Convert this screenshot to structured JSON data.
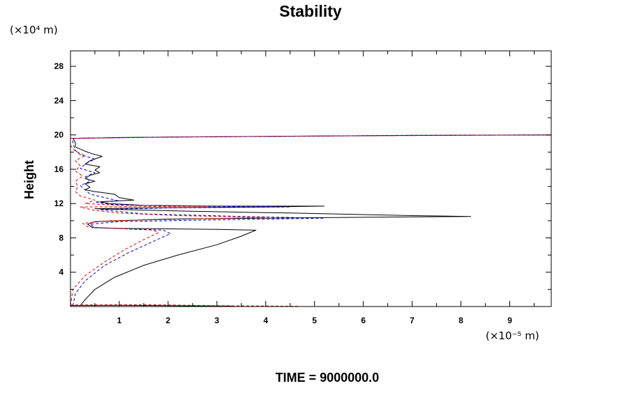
{
  "chart_data": {
    "type": "line",
    "title": "Stability",
    "ylabel": "Height",
    "y_unit": "(×10⁴ m)",
    "x_unit": "(×10⁻⁵ m)",
    "footer": "TIME = 9000000.0",
    "xlim": [
      0,
      9.85
    ],
    "ylim": [
      0,
      29.8
    ],
    "x_ticks": [
      1,
      2,
      3,
      4,
      5,
      6,
      7,
      8,
      9
    ],
    "y_ticks": [
      4,
      8,
      12,
      16,
      20,
      24,
      28
    ],
    "series": [
      {
        "color": "#000000",
        "dash": "solid",
        "points": [
          [
            0.2,
            0.1
          ],
          [
            0.3,
            0.8
          ],
          [
            0.5,
            2.0
          ],
          [
            0.9,
            3.4
          ],
          [
            1.5,
            4.8
          ],
          [
            2.2,
            6.0
          ],
          [
            3.0,
            7.2
          ],
          [
            3.5,
            8.2
          ],
          [
            3.8,
            8.9
          ],
          [
            3.0,
            9.0
          ],
          [
            1.0,
            9.1
          ],
          [
            0.45,
            9.2
          ],
          [
            0.35,
            9.6
          ],
          [
            0.5,
            9.9
          ],
          [
            2.0,
            10.2
          ],
          [
            6.0,
            10.4
          ],
          [
            8.2,
            10.5
          ],
          [
            7.0,
            10.6
          ],
          [
            4.5,
            10.9
          ],
          [
            2.5,
            11.1
          ],
          [
            1.0,
            11.3
          ],
          [
            0.5,
            11.4
          ],
          [
            1.5,
            11.5
          ],
          [
            4.0,
            11.6
          ],
          [
            5.2,
            11.7
          ],
          [
            3.0,
            11.7
          ],
          [
            1.5,
            11.8
          ],
          [
            0.8,
            12.0
          ],
          [
            0.6,
            12.2
          ],
          [
            0.9,
            12.3
          ],
          [
            1.3,
            12.4
          ],
          [
            1.0,
            12.7
          ],
          [
            0.9,
            13.1
          ],
          [
            0.5,
            13.4
          ],
          [
            0.3,
            13.6
          ],
          [
            0.4,
            13.9
          ],
          [
            0.3,
            14.3
          ],
          [
            0.5,
            14.6
          ],
          [
            0.3,
            14.9
          ],
          [
            0.4,
            15.3
          ],
          [
            0.6,
            15.6
          ],
          [
            0.5,
            15.9
          ],
          [
            0.6,
            16.3
          ],
          [
            0.3,
            16.6
          ],
          [
            0.4,
            17.0
          ],
          [
            0.65,
            17.5
          ],
          [
            0.45,
            17.8
          ],
          [
            0.3,
            18.1
          ],
          [
            0.1,
            18.6
          ],
          [
            0.1,
            19.1
          ],
          [
            0.05,
            19.6
          ],
          [
            1.0,
            19.7
          ],
          [
            3.0,
            19.8
          ],
          [
            7.0,
            19.95
          ],
          [
            9.85,
            20.0
          ]
        ]
      },
      {
        "color": "#0000cc",
        "dash": "dashed",
        "points": [
          [
            0.05,
            0.1
          ],
          [
            0.1,
            1.5
          ],
          [
            0.3,
            3.0
          ],
          [
            0.7,
            4.8
          ],
          [
            1.2,
            6.3
          ],
          [
            1.7,
            7.6
          ],
          [
            2.05,
            8.5
          ],
          [
            1.9,
            8.9
          ],
          [
            1.0,
            9.1
          ],
          [
            0.5,
            9.2
          ],
          [
            0.4,
            9.6
          ],
          [
            1.0,
            9.9
          ],
          [
            3.0,
            10.1
          ],
          [
            5.2,
            10.3
          ],
          [
            3.5,
            10.5
          ],
          [
            1.5,
            10.8
          ],
          [
            0.6,
            11.3
          ],
          [
            2.0,
            11.5
          ],
          [
            4.5,
            11.6
          ],
          [
            2.0,
            11.7
          ],
          [
            0.8,
            11.9
          ],
          [
            0.5,
            12.2
          ],
          [
            1.0,
            12.3
          ],
          [
            0.7,
            12.7
          ],
          [
            0.4,
            13.1
          ],
          [
            0.3,
            13.6
          ],
          [
            0.2,
            14.1
          ],
          [
            0.4,
            14.6
          ],
          [
            0.3,
            15.1
          ],
          [
            0.5,
            15.6
          ],
          [
            0.2,
            16.1
          ],
          [
            0.3,
            16.6
          ],
          [
            0.5,
            17.2
          ],
          [
            0.2,
            17.7
          ],
          [
            0.1,
            18.2
          ],
          [
            0.05,
            19.0
          ],
          [
            0.05,
            19.6
          ],
          [
            2.0,
            19.75
          ],
          [
            6.0,
            19.9
          ],
          [
            9.85,
            20.0
          ]
        ]
      },
      {
        "color": "#dd0000",
        "dash": "dashed",
        "points": [
          [
            0.0,
            0.1
          ],
          [
            0.05,
            2.0
          ],
          [
            0.3,
            3.6
          ],
          [
            0.7,
            5.2
          ],
          [
            1.1,
            6.6
          ],
          [
            1.5,
            7.8
          ],
          [
            1.8,
            8.6
          ],
          [
            1.7,
            8.9
          ],
          [
            0.9,
            9.1
          ],
          [
            0.35,
            9.3
          ],
          [
            0.25,
            9.7
          ],
          [
            0.8,
            10.0
          ],
          [
            2.5,
            10.2
          ],
          [
            4.0,
            10.4
          ],
          [
            2.2,
            10.6
          ],
          [
            1.0,
            10.9
          ],
          [
            0.5,
            11.2
          ],
          [
            0.2,
            11.6
          ],
          [
            1.5,
            11.65
          ],
          [
            2.8,
            11.7
          ],
          [
            1.0,
            11.8
          ],
          [
            0.3,
            12.0
          ],
          [
            0.5,
            12.4
          ],
          [
            0.2,
            12.9
          ],
          [
            0.1,
            13.4
          ],
          [
            0.15,
            14.0
          ],
          [
            0.1,
            14.6
          ],
          [
            0.25,
            15.2
          ],
          [
            0.1,
            15.8
          ],
          [
            0.2,
            16.4
          ],
          [
            0.1,
            17.0
          ],
          [
            0.3,
            17.6
          ],
          [
            0.1,
            18.1
          ],
          [
            0.0,
            18.8
          ],
          [
            0.0,
            19.6
          ],
          [
            2.0,
            19.75
          ],
          [
            6.0,
            19.9
          ],
          [
            9.85,
            20.0
          ]
        ]
      },
      {
        "color": "#000000",
        "dash": "solid",
        "points": [
          [
            0.0,
            0.12
          ],
          [
            1.0,
            0.15
          ],
          [
            2.0,
            0.1
          ],
          [
            3.3,
            0.05
          ]
        ]
      },
      {
        "color": "#dd0000",
        "dash": "dashed",
        "points": [
          [
            0.0,
            0.18
          ],
          [
            1.5,
            0.22
          ],
          [
            3.0,
            0.1
          ],
          [
            4.7,
            0.03
          ]
        ]
      }
    ]
  }
}
